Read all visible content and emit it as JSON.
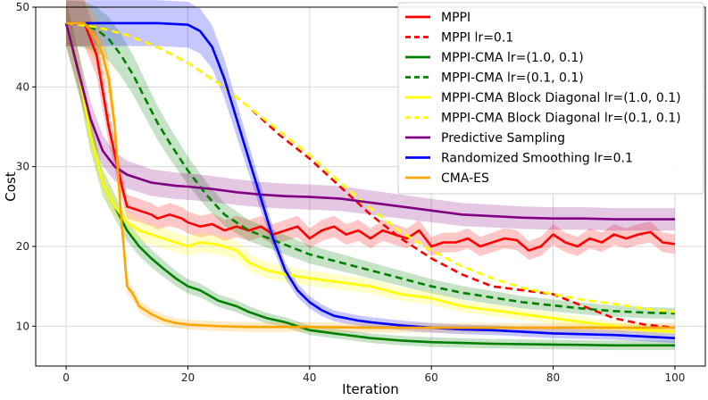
{
  "chart_data": {
    "type": "line",
    "xlabel": "Iteration",
    "ylabel": "Cost",
    "xlim": [
      -5,
      105
    ],
    "ylim": [
      5,
      50
    ],
    "xticks": [
      0,
      20,
      40,
      60,
      80,
      100
    ],
    "yticks": [
      10,
      20,
      30,
      40,
      50
    ],
    "grid": true,
    "legend_position": "top-right",
    "series": [
      {
        "name": "MPPI",
        "color": "#ff0000",
        "dash": "solid",
        "band": true,
        "x": [
          0,
          3,
          5,
          7,
          9,
          10,
          12,
          14,
          15,
          17,
          19,
          20,
          22,
          24,
          26,
          28,
          30,
          32,
          34,
          36,
          38,
          40,
          42,
          44,
          46,
          48,
          50,
          52,
          54,
          56,
          58,
          60,
          62,
          64,
          66,
          68,
          70,
          72,
          74,
          76,
          78,
          80,
          82,
          84,
          86,
          88,
          90,
          92,
          94,
          96,
          98,
          100
        ],
        "y": [
          48,
          48,
          44,
          35,
          28,
          25,
          24.5,
          24,
          23.5,
          24,
          23.5,
          23,
          22.5,
          22.8,
          22,
          22.5,
          22,
          22.5,
          21.5,
          22,
          22.5,
          21,
          22,
          22.5,
          21.5,
          22,
          21,
          22,
          21.5,
          21,
          22,
          20,
          20.5,
          20.5,
          21,
          20,
          20.5,
          21,
          20.8,
          19.5,
          20,
          21.5,
          20.5,
          20,
          21,
          20.5,
          21.5,
          21,
          21.5,
          21.8,
          20.5,
          20.3
        ]
      },
      {
        "name": "MPPI lr=0.1",
        "color": "#ff0000",
        "dash": "dashed",
        "band": false,
        "x": [
          0,
          5,
          10,
          15,
          20,
          25,
          30,
          35,
          40,
          45,
          50,
          55,
          60,
          65,
          70,
          75,
          80,
          85,
          90,
          95,
          100
        ],
        "y": [
          48,
          47.5,
          46.5,
          45,
          43,
          40.5,
          37.5,
          34,
          31,
          27.5,
          24,
          21,
          18.5,
          16.5,
          15,
          14.5,
          14,
          12.5,
          11,
          10.2,
          9.8
        ]
      },
      {
        "name": "MPPI-CMA lr=(1.0, 0.1)",
        "color": "#008000",
        "dash": "solid",
        "band": true,
        "x": [
          0,
          2,
          4,
          6,
          8,
          10,
          12,
          14,
          16,
          18,
          20,
          22,
          25,
          28,
          30,
          33,
          36,
          40,
          45,
          50,
          55,
          60,
          70,
          80,
          90,
          100
        ],
        "y": [
          48,
          42,
          34,
          28,
          25,
          22,
          20,
          18.5,
          17.2,
          16,
          15,
          14.5,
          13.2,
          12.5,
          11.8,
          11,
          10.5,
          9.5,
          9,
          8.5,
          8.2,
          8,
          7.8,
          7.7,
          7.6,
          7.6
        ]
      },
      {
        "name": "MPPI-CMA lr=(0.1, 0.1)",
        "color": "#008000",
        "dash": "dashed",
        "band": true,
        "x": [
          0,
          3,
          5,
          7,
          9,
          11,
          13,
          15,
          17,
          20,
          23,
          26,
          30,
          35,
          40,
          45,
          50,
          55,
          60,
          65,
          70,
          75,
          80,
          85,
          90,
          95,
          100
        ],
        "y": [
          48,
          47.8,
          47.2,
          46,
          44,
          41.5,
          38.5,
          35.5,
          33,
          29.5,
          26.5,
          24,
          22,
          20.5,
          19,
          18,
          17,
          16,
          15,
          14.2,
          13.6,
          13,
          12.6,
          12.2,
          11.9,
          11.7,
          11.6
        ]
      },
      {
        "name": "MPPI-CMA Block Diagonal lr=(1.0, 0.1)",
        "color": "#ffff00",
        "dash": "solid",
        "band": true,
        "x": [
          0,
          2,
          4,
          6,
          8,
          10,
          12,
          14,
          16,
          18,
          20,
          22,
          25,
          28,
          30,
          33,
          36,
          40,
          45,
          50,
          55,
          60,
          65,
          70,
          75,
          80,
          85,
          90,
          95,
          100
        ],
        "y": [
          48,
          42,
          34,
          28,
          25,
          23,
          22,
          21.5,
          21,
          20.5,
          20,
          20.5,
          20.2,
          19.5,
          18,
          17,
          16.5,
          16,
          15.5,
          15,
          14,
          13.5,
          12.5,
          12,
          11.5,
          11,
          10.5,
          10,
          9.5,
          9.3
        ]
      },
      {
        "name": "MPPI-CMA Block Diagonal lr=(0.1, 0.1)",
        "color": "#ffff00",
        "dash": "dashed",
        "band": false,
        "x": [
          0,
          5,
          10,
          15,
          20,
          25,
          30,
          35,
          40,
          45,
          50,
          55,
          60,
          65,
          70,
          75,
          80,
          85,
          90,
          95,
          100
        ],
        "y": [
          48,
          47.5,
          46.5,
          45,
          43,
          40.5,
          37.5,
          34.5,
          31.5,
          28,
          24.8,
          21.8,
          19.5,
          17.5,
          16,
          14.8,
          14,
          13.3,
          12.8,
          12.2,
          11.8
        ]
      },
      {
        "name": "Predictive Sampling",
        "color": "#800080",
        "dash": "solid",
        "band": true,
        "x": [
          0,
          2,
          4,
          6,
          8,
          10,
          12,
          14,
          16,
          18,
          20,
          24,
          28,
          32,
          36,
          40,
          45,
          50,
          55,
          60,
          65,
          70,
          75,
          80,
          85,
          90,
          95,
          100
        ],
        "y": [
          48,
          42,
          36,
          32,
          30,
          29,
          28.5,
          28,
          27.8,
          27.6,
          27.5,
          27.2,
          26.8,
          26.5,
          26.3,
          26.2,
          26,
          25.5,
          25,
          24.5,
          24,
          23.8,
          23.6,
          23.5,
          23.5,
          23.4,
          23.4,
          23.4
        ]
      },
      {
        "name": "Randomized Smoothing lr=0.1",
        "color": "#0000ff",
        "dash": "solid",
        "band": true,
        "x": [
          0,
          5,
          10,
          15,
          20,
          22,
          24,
          26,
          28,
          30,
          32,
          34,
          36,
          38,
          40,
          42,
          44,
          46,
          48,
          50,
          55,
          60,
          65,
          70,
          75,
          80,
          85,
          90,
          95,
          100
        ],
        "y": [
          48,
          48,
          48,
          48,
          47.8,
          47,
          45,
          41,
          36,
          31,
          26,
          21,
          17,
          14.5,
          13,
          12,
          11.3,
          11,
          10.7,
          10.5,
          10.1,
          9.8,
          9.6,
          9.5,
          9.3,
          9.1,
          9,
          8.9,
          8.7,
          8.5
        ]
      },
      {
        "name": "CMA-ES",
        "color": "#ffa500",
        "dash": "solid",
        "band": true,
        "x": [
          0,
          3,
          5,
          6,
          7,
          8,
          9,
          10,
          11,
          12,
          14,
          16,
          18,
          20,
          25,
          30,
          35,
          40,
          50,
          60,
          70,
          80,
          90,
          100
        ],
        "y": [
          48,
          48,
          46,
          44,
          41,
          35,
          24,
          15,
          14,
          12.5,
          11.5,
          10.8,
          10.4,
          10.2,
          10,
          9.9,
          9.9,
          9.9,
          9.8,
          9.8,
          9.8,
          9.8,
          9.8,
          9.8
        ]
      }
    ]
  }
}
